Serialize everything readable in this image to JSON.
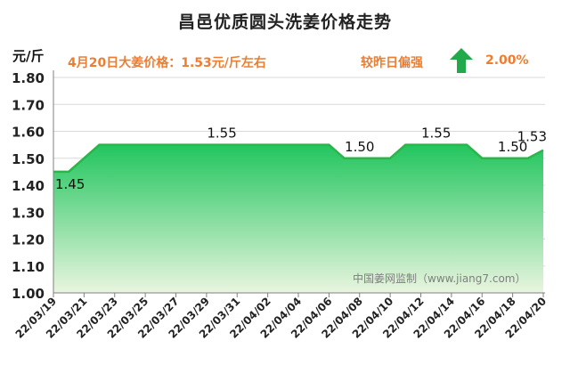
{
  "header": {
    "title": "昌邑优质圆头洗姜价格走势",
    "unit": "元/斤",
    "price_note": "4月20日大姜价格：1.53元/斤左右",
    "compare_label": "较昨日偏强",
    "compare_value": "2.00%",
    "compare_direction": "up"
  },
  "watermark": "中国姜网监制（www.jiang7.com）",
  "colors": {
    "fill_top": "#22c55e",
    "fill_bottom": "#e9f5df",
    "line": "#2bb54a",
    "arrow": "#22a94b",
    "highlight_text": "#ed7d31",
    "grid": "#d9d9d9"
  },
  "chart_data": {
    "type": "area",
    "x": [
      "22/03/19",
      "22/03/20",
      "22/03/21",
      "22/03/22",
      "22/03/23",
      "22/03/24",
      "22/03/25",
      "22/03/26",
      "22/03/27",
      "22/03/28",
      "22/03/29",
      "22/03/30",
      "22/03/31",
      "22/04/01",
      "22/04/02",
      "22/04/03",
      "22/04/04",
      "22/04/05",
      "22/04/06",
      "22/04/07",
      "22/04/08",
      "22/04/09",
      "22/04/10",
      "22/04/11",
      "22/04/12",
      "22/04/13",
      "22/04/14",
      "22/04/15",
      "22/04/16",
      "22/04/17",
      "22/04/18",
      "22/04/19",
      "22/04/20"
    ],
    "values": [
      1.45,
      1.45,
      1.5,
      1.55,
      1.55,
      1.55,
      1.55,
      1.55,
      1.55,
      1.55,
      1.55,
      1.55,
      1.55,
      1.55,
      1.55,
      1.55,
      1.55,
      1.55,
      1.55,
      1.5,
      1.5,
      1.5,
      1.5,
      1.55,
      1.55,
      1.55,
      1.55,
      1.55,
      1.5,
      1.5,
      1.5,
      1.5,
      1.53
    ],
    "x_tick_labels": [
      "22/03/19",
      "22/03/21",
      "22/03/23",
      "22/03/25",
      "22/03/27",
      "22/03/29",
      "22/03/31",
      "22/04/02",
      "22/04/04",
      "22/04/06",
      "22/04/08",
      "22/04/10",
      "22/04/12",
      "22/04/14",
      "22/04/16",
      "22/04/18",
      "22/04/20"
    ],
    "y_ticks": [
      "1.00",
      "1.10",
      "1.20",
      "1.30",
      "1.40",
      "1.50",
      "1.60",
      "1.70",
      "1.80"
    ],
    "ylim": [
      1.0,
      1.8
    ],
    "data_labels": [
      {
        "x": "22/03/19",
        "text": "1.45"
      },
      {
        "x": "22/03/30",
        "text": "1.55"
      },
      {
        "x": "22/04/08",
        "text": "1.50"
      },
      {
        "x": "22/04/13",
        "text": "1.55"
      },
      {
        "x": "22/04/18",
        "text": "1.50"
      },
      {
        "x": "22/04/20",
        "text": "1.53"
      }
    ],
    "grid": true,
    "legend": false
  }
}
